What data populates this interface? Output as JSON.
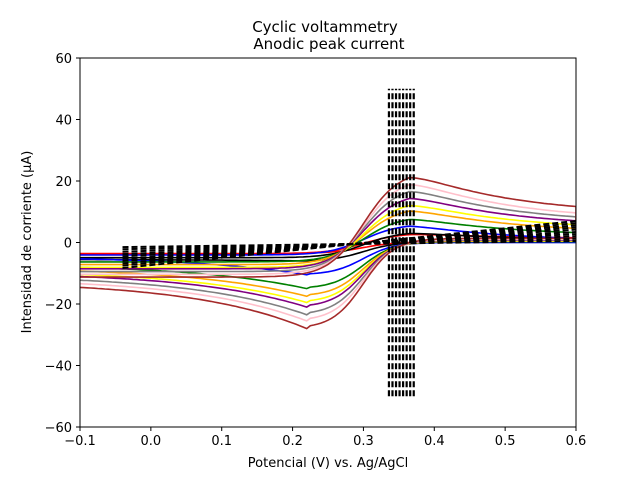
{
  "chart_data": {
    "type": "line",
    "title": "Cyclic voltammetry",
    "subtitle": "Anodic peak current",
    "xlabel": "Potencial (V) vs. Ag/AgCl",
    "ylabel": "Intensidad de corriente (μA)",
    "xlim": [
      -0.1,
      0.6
    ],
    "ylim": [
      -60,
      60
    ],
    "xticks": [
      -0.1,
      0.0,
      0.1,
      0.2,
      0.3,
      0.4,
      0.5,
      0.6
    ],
    "xtick_labels": [
      "−0.1",
      "0.0",
      "0.1",
      "0.2",
      "0.3",
      "0.4",
      "0.5",
      "0.6"
    ],
    "yticks": [
      -60,
      -40,
      -20,
      0,
      20,
      40,
      60
    ],
    "ytick_labels": [
      "−60",
      "−40",
      "−20",
      "0",
      "20",
      "40",
      "60"
    ],
    "grid": false,
    "legend": "none",
    "series": [
      {
        "color": "#ff0000",
        "peak_anodic": 3.0,
        "peak_cathodic": -3.5,
        "tail_high": 1.2,
        "tail_low": -4.0
      },
      {
        "color": "#000000",
        "peak_anodic": 3.5,
        "peak_cathodic": -6.0,
        "tail_high": 0.5,
        "tail_low": -5.5
      },
      {
        "color": "#0000ff",
        "peak_anodic": 6.0,
        "peak_cathodic": -10.5,
        "tail_high": 0.3,
        "tail_low": -4.5
      },
      {
        "color": "#008000",
        "peak_anodic": 8.5,
        "peak_cathodic": -15.0,
        "tail_high": 2.0,
        "tail_low": -7.0
      },
      {
        "color": "#ffa500",
        "peak_anodic": 11.5,
        "peak_cathodic": -17.5,
        "tail_high": 3.0,
        "tail_low": -8.0
      },
      {
        "color": "#ffff00",
        "peak_anodic": 13.5,
        "peak_cathodic": -19.5,
        "tail_high": 4.0,
        "tail_low": -9.0
      },
      {
        "color": "#800080",
        "peak_anodic": 16.0,
        "peak_cathodic": -21.0,
        "tail_high": 5.0,
        "tail_low": -9.5
      },
      {
        "color": "#808080",
        "peak_anodic": 18.5,
        "peak_cathodic": -23.5,
        "tail_high": 6.0,
        "tail_low": -10.5
      },
      {
        "color": "#ffc0cb",
        "peak_anodic": 21.0,
        "peak_cathodic": -25.5,
        "tail_high": 7.0,
        "tail_low": -11.5
      },
      {
        "color": "#a52a2a",
        "peak_anodic": 23.5,
        "peak_cathodic": -28.0,
        "tail_high": 9.0,
        "tail_low": -12.5
      }
    ],
    "baselines": {
      "style": "dashed",
      "color": "#000000",
      "x_range": [
        -0.04,
        0.6
      ],
      "count": 10,
      "y_at_start": [
        -1.5,
        -2.2,
        -3.0,
        -3.8,
        -4.5,
        -5.3,
        -6.0,
        -6.8,
        -7.5,
        -8.3
      ],
      "y_at_end": [
        0.5,
        1.2,
        2.0,
        2.7,
        3.4,
        4.2,
        4.9,
        5.6,
        6.3,
        7.0
      ]
    },
    "peak_markers": {
      "style": "dashed",
      "color": "#000000",
      "x_values": [
        0.336,
        0.341,
        0.346,
        0.351,
        0.356,
        0.361,
        0.366,
        0.371
      ],
      "y_range": [
        -50,
        50
      ]
    }
  }
}
